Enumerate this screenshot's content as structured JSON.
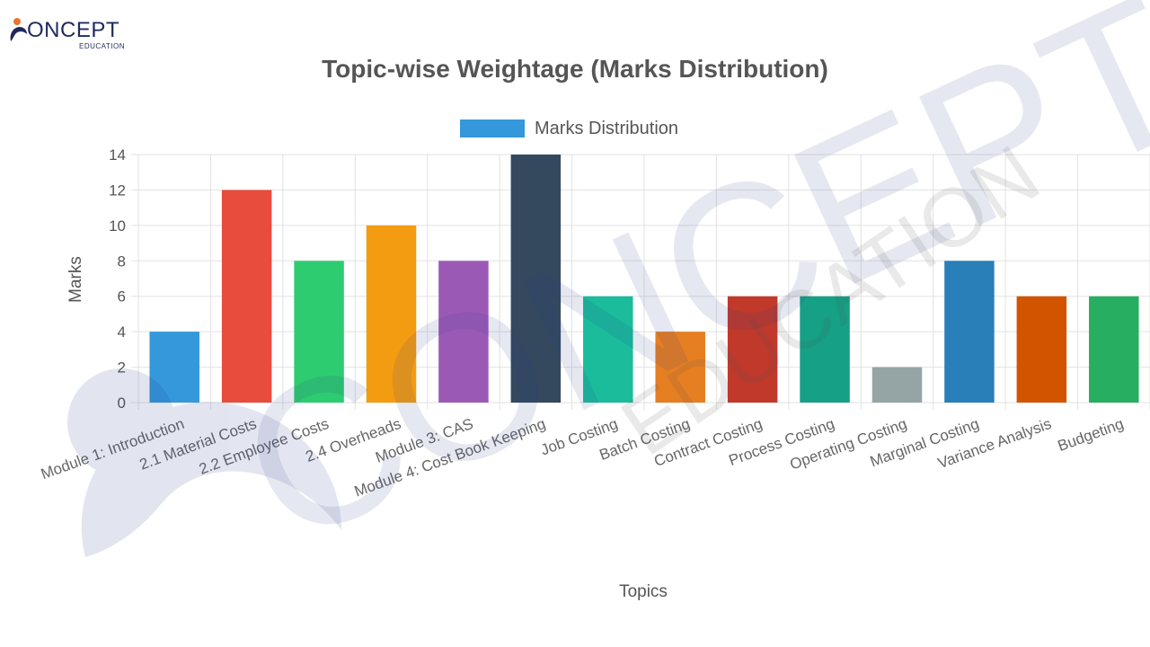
{
  "logo": {
    "brand": "ONCEPT",
    "sub": "EDUCATION"
  },
  "watermark": {
    "main": "CONCEPT",
    "sub": "EDUCATION"
  },
  "chart_data": {
    "type": "bar",
    "title": "Topic-wise Weightage (Marks Distribution)",
    "xlabel": "Topics",
    "ylabel": "Marks",
    "ylim": [
      0,
      14
    ],
    "yticks": [
      0,
      2,
      4,
      6,
      8,
      10,
      12,
      14
    ],
    "grid": true,
    "legend_position": "top-center",
    "categories": [
      "Module 1: Introduction",
      "2.1 Material Costs",
      "2.2 Employee Costs",
      "2.4 Overheads",
      "Module 3: CAS",
      "Module 4: Cost Book Keeping",
      "Job Costing",
      "Batch Costing",
      "Contract Costing",
      "Process Costing",
      "Operating Costing",
      "Marginal Costing",
      "Variance Analysis",
      "Budgeting"
    ],
    "series": [
      {
        "name": "Marks Distribution",
        "legend_color": "#3498db",
        "values": [
          4,
          12,
          8,
          10,
          8,
          14,
          6,
          4,
          6,
          6,
          2,
          8,
          6,
          6
        ],
        "colors": [
          "#3498db",
          "#e74c3c",
          "#2ecc71",
          "#f39c12",
          "#9b59b6",
          "#34495e",
          "#1abc9c",
          "#e67e22",
          "#c0392b",
          "#16a085",
          "#95a5a6",
          "#2980b9",
          "#d35400",
          "#27ae60"
        ]
      }
    ]
  }
}
